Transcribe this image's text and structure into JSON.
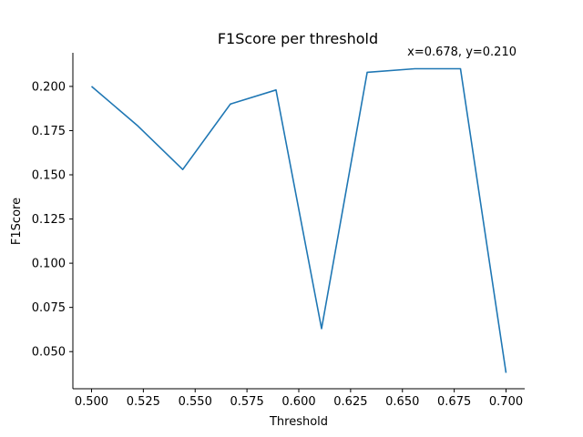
{
  "chart_data": {
    "type": "line",
    "title": "F1Score per threshold",
    "xlabel": "Threshold",
    "ylabel": "F1Score",
    "xlim": [
      0.491,
      0.709
    ],
    "ylim": [
      0.029,
      0.219
    ],
    "xticks": [
      "0.500",
      "0.525",
      "0.550",
      "0.575",
      "0.600",
      "0.625",
      "0.650",
      "0.675",
      "0.700"
    ],
    "yticks": [
      "0.050",
      "0.075",
      "0.100",
      "0.125",
      "0.150",
      "0.175",
      "0.200"
    ],
    "grid": false,
    "series": [
      {
        "color": "#1f77b4",
        "x": [
          0.5,
          0.522,
          0.544,
          0.567,
          0.589,
          0.611,
          0.633,
          0.656,
          0.678,
          0.7
        ],
        "y": [
          0.2,
          0.178,
          0.153,
          0.19,
          0.198,
          0.063,
          0.208,
          0.21,
          0.21,
          0.038
        ]
      }
    ],
    "annotation": "x=0.678, y=0.210"
  }
}
